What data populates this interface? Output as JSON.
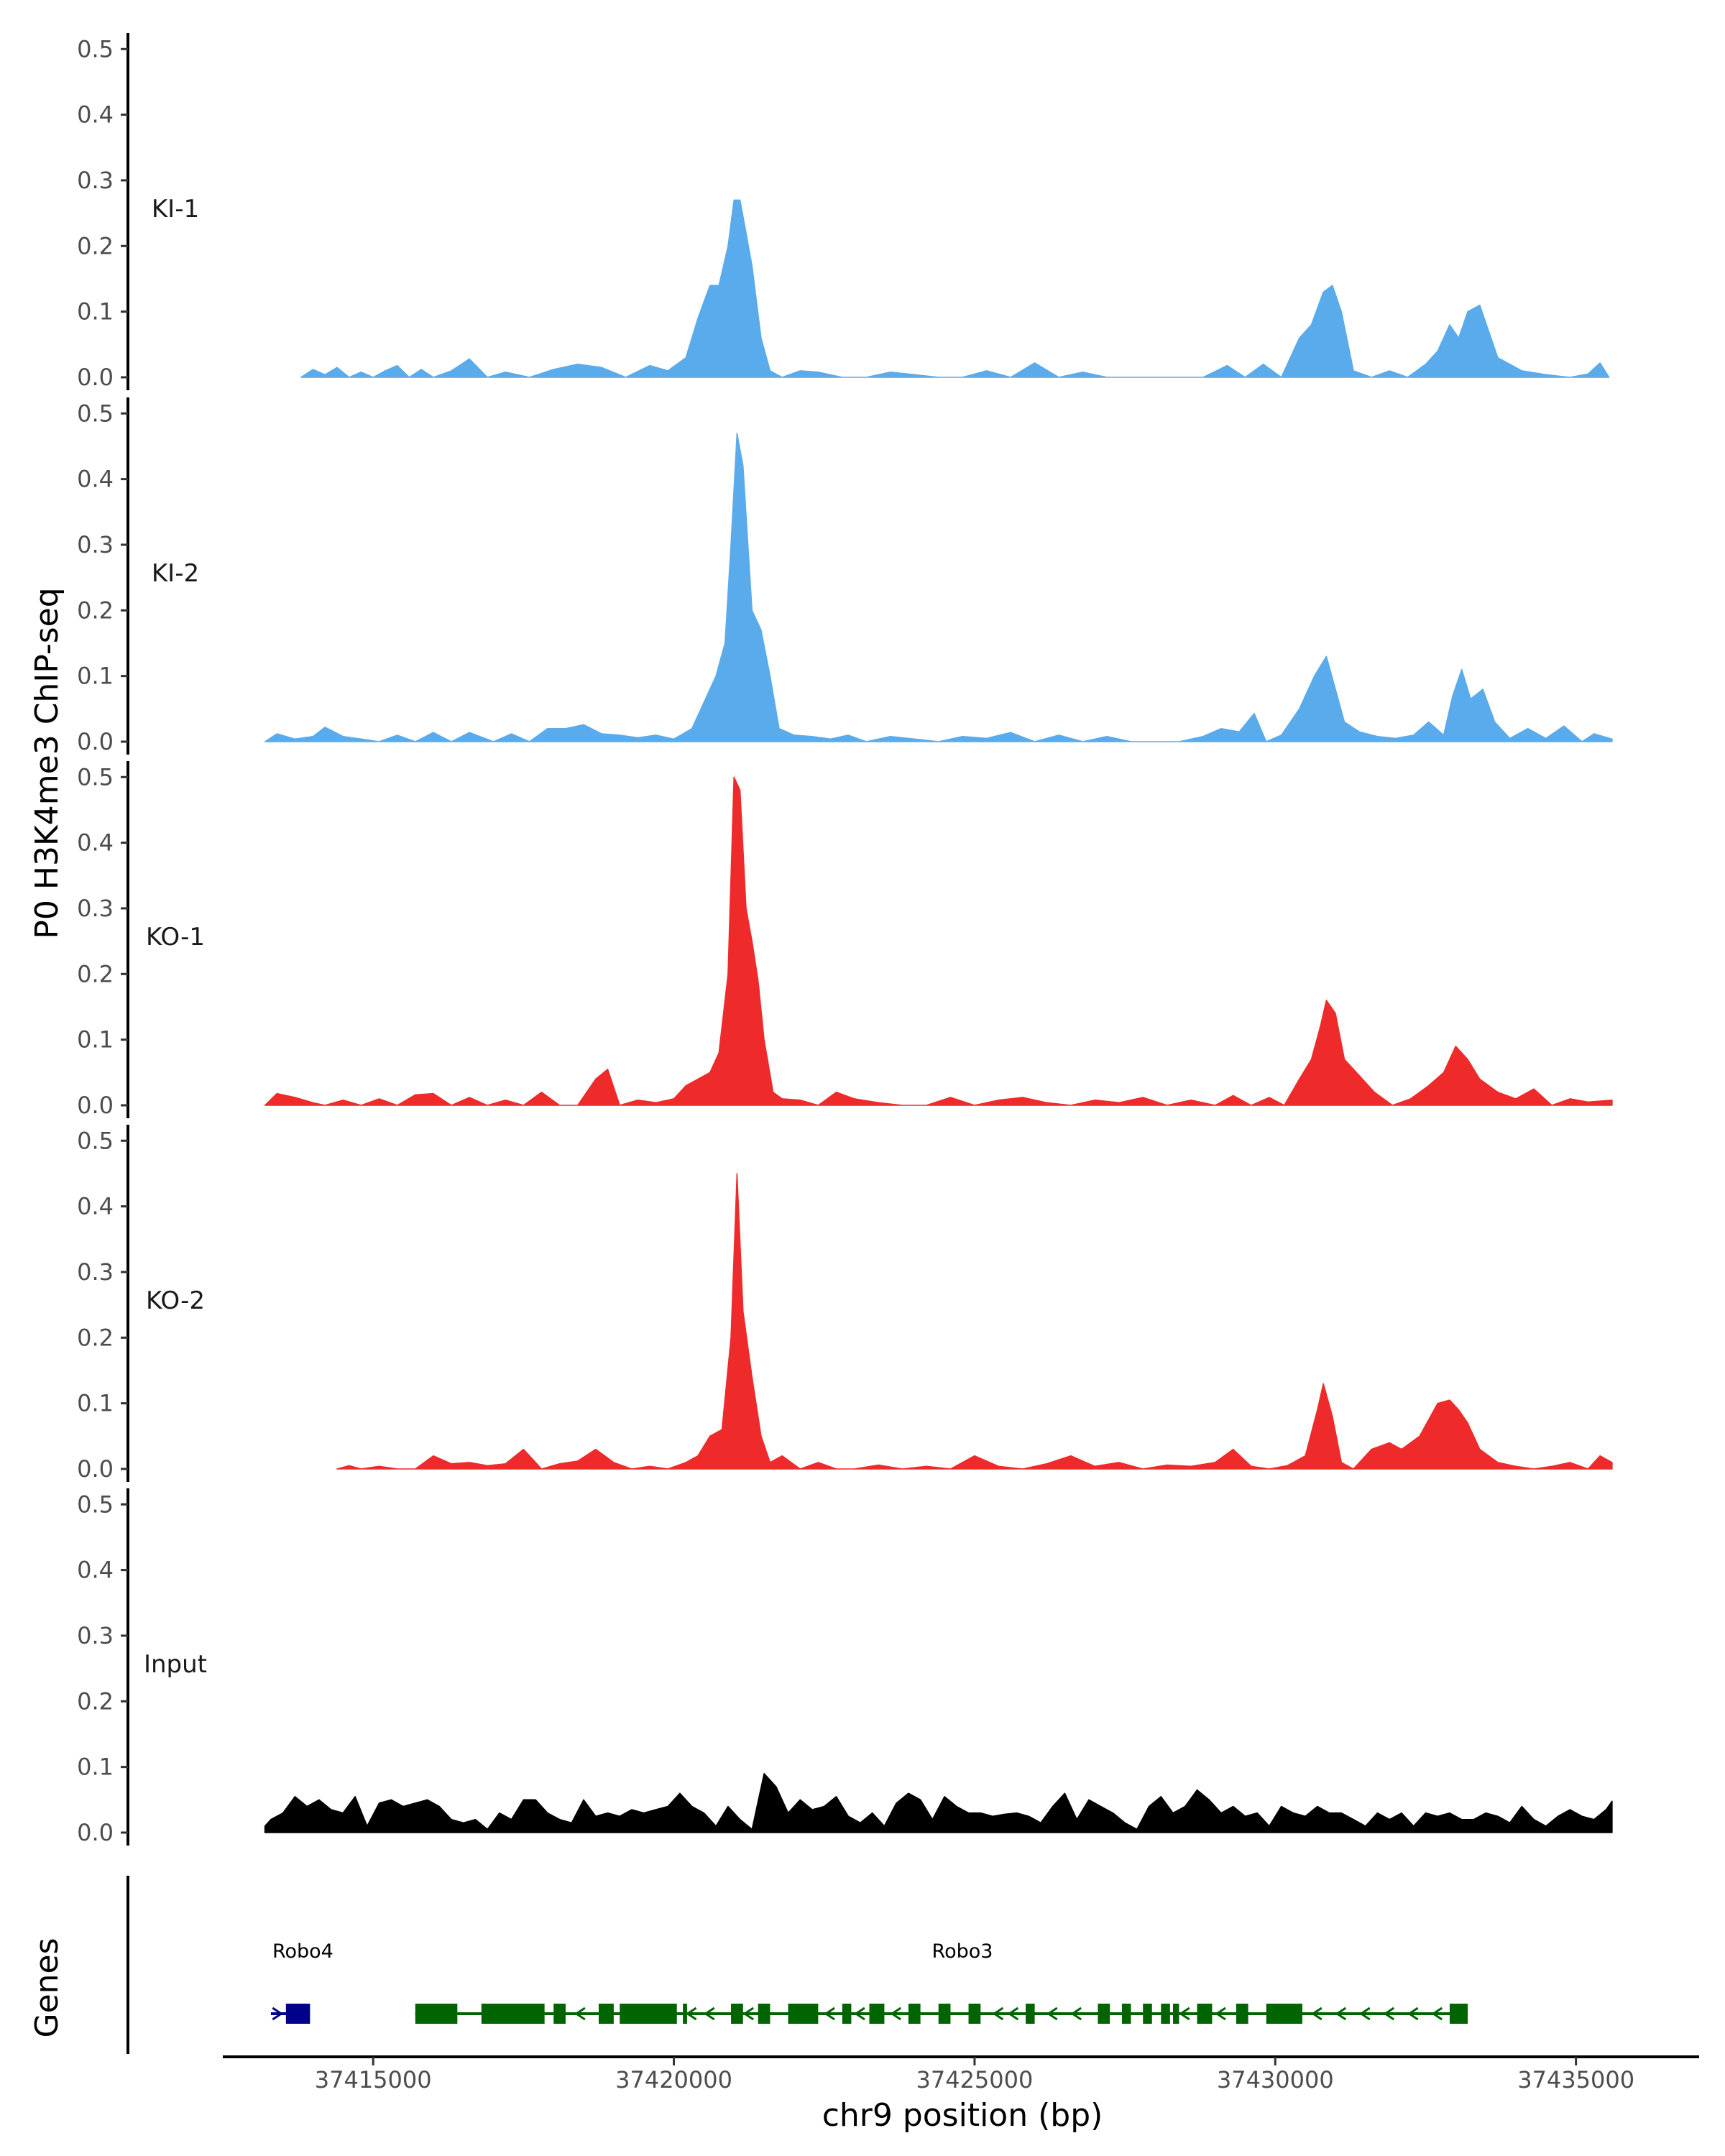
{
  "chart_data": {
    "type": "area",
    "ylabel": "P0 H3K4me3 ChIP-seq",
    "xlabel": "chr9 position (bp)",
    "genes_label": "Genes",
    "xlim": [
      37412500,
      37437000
    ],
    "ylim": [
      0,
      0.52
    ],
    "x_ticks": [
      37415000,
      37420000,
      37425000,
      37430000,
      37435000
    ],
    "x_tick_labels": [
      "37415000",
      "37420000",
      "37425000",
      "37430000",
      "37435000"
    ],
    "y_ticks": [
      0.0,
      0.1,
      0.2,
      0.3,
      0.4,
      0.5
    ],
    "y_tick_labels": [
      "0.0",
      "0.1",
      "0.2",
      "0.3",
      "0.4",
      "0.5"
    ],
    "colors": {
      "ki": "#5aabec",
      "ko": "#ee2a2a",
      "input": "#000000",
      "robo4": "#00008b",
      "robo3": "#006400"
    },
    "tracks": [
      {
        "name": "KI-1",
        "color": "#5aabec",
        "x": [
          37413800,
          37414000,
          37414200,
          37414400,
          37414600,
          37414800,
          37415000,
          37415200,
          37415400,
          37415600,
          37415800,
          37416000,
          37416300,
          37416600,
          37416900,
          37417200,
          37417600,
          37418000,
          37418400,
          37418800,
          37419200,
          37419600,
          37419900,
          37420200,
          37420400,
          37420600,
          37420750,
          37420900,
          37421000,
          37421100,
          37421200,
          37421300,
          37421450,
          37421600,
          37421800,
          37422100,
          37422400,
          37422800,
          37423200,
          37423600,
          37424000,
          37424400,
          37424800,
          37425200,
          37425600,
          37426000,
          37426400,
          37426800,
          37427200,
          37427600,
          37428000,
          37428400,
          37428800,
          37429200,
          37429500,
          37429800,
          37430100,
          37430400,
          37430600,
          37430800,
          37430950,
          37431100,
          37431300,
          37431600,
          37431900,
          37432200,
          37432500,
          37432700,
          37432900,
          37433050,
          37433200,
          37433400,
          37433700,
          37434100,
          37434500,
          37434900,
          37435200,
          37435400,
          37435550
        ],
        "y": [
          0.0,
          0.012,
          0.004,
          0.015,
          0.0,
          0.008,
          0.0,
          0.01,
          0.018,
          0.0,
          0.012,
          0.0,
          0.01,
          0.028,
          0.0,
          0.008,
          0.0,
          0.012,
          0.02,
          0.015,
          0.0,
          0.018,
          0.01,
          0.03,
          0.09,
          0.14,
          0.14,
          0.2,
          0.27,
          0.27,
          0.22,
          0.17,
          0.06,
          0.01,
          0.0,
          0.01,
          0.008,
          0.0,
          0.0,
          0.008,
          0.004,
          0.0,
          0.0,
          0.01,
          0.0,
          0.022,
          0.0,
          0.008,
          0.0,
          0.0,
          0.0,
          0.0,
          0.0,
          0.018,
          0.0,
          0.02,
          0.0,
          0.06,
          0.08,
          0.13,
          0.14,
          0.1,
          0.01,
          0.0,
          0.01,
          0.0,
          0.02,
          0.04,
          0.08,
          0.06,
          0.1,
          0.11,
          0.03,
          0.01,
          0.004,
          0.0,
          0.005,
          0.022,
          0.0
        ]
      },
      {
        "name": "KI-2",
        "color": "#5aabec",
        "x": [
          37413200,
          37413400,
          37413700,
          37414000,
          37414200,
          37414500,
          37414800,
          37415100,
          37415400,
          37415700,
          37416000,
          37416300,
          37416600,
          37417000,
          37417300,
          37417600,
          37417900,
          37418200,
          37418500,
          37418800,
          37419100,
          37419400,
          37419700,
          37420000,
          37420300,
          37420500,
          37420700,
          37420850,
          37420950,
          37421050,
          37421150,
          37421300,
          37421450,
          37421600,
          37421750,
          37422000,
          37422300,
          37422600,
          37422900,
          37423200,
          37423600,
          37424000,
          37424400,
          37424800,
          37425200,
          37425600,
          37426000,
          37426400,
          37426800,
          37427200,
          37427600,
          37428000,
          37428400,
          37428800,
          37429100,
          37429400,
          37429650,
          37429850,
          37430100,
          37430400,
          37430650,
          37430850,
          37431000,
          37431150,
          37431400,
          37431700,
          37432000,
          37432300,
          37432550,
          37432800,
          37432950,
          37433100,
          37433250,
          37433450,
          37433650,
          37433900,
          37434200,
          37434500,
          37434800,
          37435100,
          37435300,
          37435600
        ],
        "y": [
          0.0,
          0.012,
          0.004,
          0.008,
          0.022,
          0.008,
          0.004,
          0.0,
          0.01,
          0.0,
          0.014,
          0.0,
          0.014,
          0.0,
          0.012,
          0.0,
          0.02,
          0.02,
          0.026,
          0.012,
          0.01,
          0.006,
          0.01,
          0.004,
          0.02,
          0.06,
          0.1,
          0.15,
          0.3,
          0.47,
          0.42,
          0.2,
          0.17,
          0.1,
          0.02,
          0.01,
          0.008,
          0.004,
          0.01,
          0.0,
          0.008,
          0.004,
          0.0,
          0.008,
          0.005,
          0.014,
          0.0,
          0.01,
          0.0,
          0.008,
          0.0,
          0.0,
          0.0,
          0.008,
          0.02,
          0.015,
          0.043,
          0.0,
          0.01,
          0.05,
          0.1,
          0.13,
          0.08,
          0.03,
          0.015,
          0.008,
          0.005,
          0.01,
          0.03,
          0.01,
          0.07,
          0.11,
          0.065,
          0.08,
          0.03,
          0.005,
          0.02,
          0.005,
          0.024,
          0.0,
          0.012,
          0.004
        ]
      },
      {
        "name": "KO-1",
        "color": "#ee2a2a",
        "x": [
          37413200,
          37413400,
          37413700,
          37414000,
          37414200,
          37414500,
          37414800,
          37415100,
          37415400,
          37415700,
          37416000,
          37416300,
          37416600,
          37416900,
          37417200,
          37417500,
          37417800,
          37418100,
          37418400,
          37418700,
          37418900,
          37419100,
          37419400,
          37419700,
          37420000,
          37420200,
          37420400,
          37420600,
          37420750,
          37420900,
          37421000,
          37421100,
          37421200,
          37421300,
          37421400,
          37421500,
          37421650,
          37421800,
          37422100,
          37422400,
          37422700,
          37423000,
          37423400,
          37423800,
          37424200,
          37424600,
          37425000,
          37425400,
          37425800,
          37426200,
          37426600,
          37427000,
          37427400,
          37427800,
          37428200,
          37428600,
          37429000,
          37429300,
          37429600,
          37429900,
          37430150,
          37430400,
          37430600,
          37430750,
          37430850,
          37431000,
          37431150,
          37431350,
          37431650,
          37431950,
          37432250,
          37432550,
          37432800,
          37433000,
          37433200,
          37433400,
          37433700,
          37434000,
          37434300,
          37434600,
          37434900,
          37435200,
          37435600
        ],
        "y": [
          0.0,
          0.018,
          0.012,
          0.004,
          0.0,
          0.008,
          0.0,
          0.01,
          0.0,
          0.016,
          0.018,
          0.0,
          0.012,
          0.0,
          0.008,
          0.0,
          0.02,
          0.0,
          0.0,
          0.04,
          0.055,
          0.0,
          0.008,
          0.004,
          0.01,
          0.03,
          0.04,
          0.05,
          0.08,
          0.2,
          0.5,
          0.48,
          0.3,
          0.25,
          0.19,
          0.1,
          0.02,
          0.01,
          0.008,
          0.0,
          0.02,
          0.01,
          0.004,
          0.0,
          0.0,
          0.012,
          0.0,
          0.008,
          0.012,
          0.004,
          0.0,
          0.008,
          0.004,
          0.012,
          0.0,
          0.008,
          0.0,
          0.015,
          0.0,
          0.012,
          0.0,
          0.04,
          0.07,
          0.12,
          0.16,
          0.14,
          0.07,
          0.05,
          0.02,
          0.0,
          0.01,
          0.03,
          0.05,
          0.09,
          0.07,
          0.04,
          0.02,
          0.01,
          0.025,
          0.0,
          0.01,
          0.005,
          0.008
        ]
      },
      {
        "name": "KO-2",
        "color": "#ee2a2a",
        "x": [
          37414400,
          37414600,
          37414800,
          37415100,
          37415400,
          37415700,
          37416000,
          37416300,
          37416600,
          37416900,
          37417200,
          37417500,
          37417800,
          37418100,
          37418400,
          37418700,
          37419000,
          37419300,
          37419600,
          37419900,
          37420200,
          37420400,
          37420600,
          37420800,
          37420950,
          37421050,
          37421150,
          37421300,
          37421450,
          37421600,
          37421800,
          37422100,
          37422400,
          37422700,
          37423000,
          37423400,
          37423800,
          37424200,
          37424600,
          37425000,
          37425400,
          37425800,
          37426200,
          37426600,
          37427000,
          37427400,
          37427800,
          37428200,
          37428600,
          37429000,
          37429300,
          37429600,
          37429900,
          37430200,
          37430500,
          37430700,
          37430800,
          37430950,
          37431100,
          37431300,
          37431600,
          37431900,
          37432100,
          37432400,
          37432700,
          37432900,
          37433050,
          37433200,
          37433400,
          37433700,
          37434000,
          37434300,
          37434600,
          37434900,
          37435200,
          37435400,
          37435600
        ],
        "y": [
          0.0,
          0.005,
          0.0,
          0.004,
          0.0,
          0.0,
          0.02,
          0.008,
          0.01,
          0.005,
          0.008,
          0.03,
          0.0,
          0.008,
          0.012,
          0.03,
          0.01,
          0.0,
          0.004,
          0.0,
          0.01,
          0.02,
          0.05,
          0.06,
          0.2,
          0.45,
          0.24,
          0.14,
          0.05,
          0.01,
          0.02,
          0.0,
          0.01,
          0.0,
          0.0,
          0.006,
          0.0,
          0.004,
          0.0,
          0.02,
          0.004,
          0.0,
          0.008,
          0.02,
          0.004,
          0.01,
          0.0,
          0.006,
          0.004,
          0.01,
          0.03,
          0.004,
          0.0,
          0.005,
          0.02,
          0.09,
          0.13,
          0.08,
          0.01,
          0.0,
          0.03,
          0.04,
          0.03,
          0.05,
          0.1,
          0.105,
          0.09,
          0.07,
          0.03,
          0.01,
          0.004,
          0.0,
          0.004,
          0.01,
          0.0,
          0.02,
          0.01
        ]
      },
      {
        "name": "Input",
        "color": "#000000",
        "x": [
          37413200,
          37413300,
          37413500,
          37413700,
          37413900,
          37414100,
          37414300,
          37414500,
          37414700,
          37414900,
          37415100,
          37415300,
          37415500,
          37415700,
          37415900,
          37416100,
          37416300,
          37416500,
          37416700,
          37416900,
          37417100,
          37417300,
          37417500,
          37417700,
          37417900,
          37418100,
          37418300,
          37418500,
          37418700,
          37418900,
          37419100,
          37419300,
          37419500,
          37419700,
          37419900,
          37420100,
          37420300,
          37420500,
          37420700,
          37420900,
          37421100,
          37421300,
          37421500,
          37421700,
          37421900,
          37422100,
          37422300,
          37422500,
          37422700,
          37422900,
          37423100,
          37423300,
          37423500,
          37423700,
          37423900,
          37424100,
          37424300,
          37424500,
          37424700,
          37424900,
          37425100,
          37425300,
          37425500,
          37425700,
          37425900,
          37426100,
          37426300,
          37426500,
          37426700,
          37426900,
          37427100,
          37427300,
          37427500,
          37427700,
          37427900,
          37428100,
          37428300,
          37428500,
          37428700,
          37428900,
          37429100,
          37429300,
          37429500,
          37429700,
          37429900,
          37430100,
          37430300,
          37430500,
          37430700,
          37430900,
          37431100,
          37431300,
          37431500,
          37431700,
          37431900,
          37432100,
          37432300,
          37432500,
          37432700,
          37432900,
          37433100,
          37433300,
          37433500,
          37433700,
          37433900,
          37434100,
          37434300,
          37434500,
          37434700,
          37434900,
          37435100,
          37435300,
          37435500,
          37435600
        ],
        "y": [
          0.01,
          0.02,
          0.03,
          0.055,
          0.04,
          0.05,
          0.035,
          0.03,
          0.055,
          0.01,
          0.045,
          0.05,
          0.04,
          0.045,
          0.05,
          0.04,
          0.02,
          0.015,
          0.02,
          0.005,
          0.03,
          0.02,
          0.05,
          0.05,
          0.03,
          0.02,
          0.015,
          0.05,
          0.025,
          0.03,
          0.025,
          0.035,
          0.03,
          0.035,
          0.04,
          0.06,
          0.04,
          0.03,
          0.01,
          0.04,
          0.02,
          0.005,
          0.09,
          0.07,
          0.03,
          0.05,
          0.035,
          0.04,
          0.055,
          0.025,
          0.015,
          0.03,
          0.01,
          0.045,
          0.06,
          0.05,
          0.02,
          0.055,
          0.04,
          0.03,
          0.03,
          0.025,
          0.028,
          0.03,
          0.025,
          0.015,
          0.04,
          0.06,
          0.02,
          0.05,
          0.04,
          0.03,
          0.015,
          0.005,
          0.04,
          0.055,
          0.03,
          0.04,
          0.065,
          0.05,
          0.03,
          0.04,
          0.025,
          0.03,
          0.01,
          0.04,
          0.03,
          0.025,
          0.04,
          0.03,
          0.03,
          0.02,
          0.01,
          0.03,
          0.02,
          0.03,
          0.01,
          0.03,
          0.025,
          0.03,
          0.02,
          0.02,
          0.03,
          0.025,
          0.015,
          0.04,
          0.02,
          0.01,
          0.025,
          0.035,
          0.025,
          0.02,
          0.035,
          0.048
        ]
      }
    ],
    "genes": [
      {
        "name": "Robo4",
        "label": "Robo4",
        "color": "#00008b",
        "start": 37413300,
        "end": 37413950,
        "blocks": [
          [
            37413550,
            37413950
          ]
        ],
        "arrows": [
          37413400
        ]
      },
      {
        "name": "Robo3",
        "label": "Robo3",
        "color": "#006400",
        "start": 37415700,
        "end": 37433200,
        "blocks": [
          [
            37415700,
            37416400
          ],
          [
            37416800,
            37417850
          ],
          [
            37418000,
            37418200
          ],
          [
            37418750,
            37419000
          ],
          [
            37419100,
            37420050
          ],
          [
            37420150,
            37420220
          ],
          [
            37420950,
            37421150
          ],
          [
            37421400,
            37421600
          ],
          [
            37421900,
            37422400
          ],
          [
            37422800,
            37422950
          ],
          [
            37423250,
            37423500
          ],
          [
            37423900,
            37424100
          ],
          [
            37424400,
            37424600
          ],
          [
            37424900,
            37425100
          ],
          [
            37425850,
            37426000
          ],
          [
            37427050,
            37427250
          ],
          [
            37427450,
            37427600
          ],
          [
            37427800,
            37427950
          ],
          [
            37428100,
            37428250
          ],
          [
            37428300,
            37428400
          ],
          [
            37428700,
            37428950
          ],
          [
            37429350,
            37429550
          ],
          [
            37429850,
            37430450
          ],
          [
            37432900,
            37433200
          ]
        ],
        "arrows": [
          37418450,
          37420300,
          37420600,
          37421250,
          37422600,
          37423100,
          37423700,
          37425400,
          37425650,
          37426300,
          37426700,
          37428500,
          37429100,
          37430700,
          37431100,
          37431500,
          37431900,
          37432300,
          37432700
        ]
      }
    ]
  }
}
